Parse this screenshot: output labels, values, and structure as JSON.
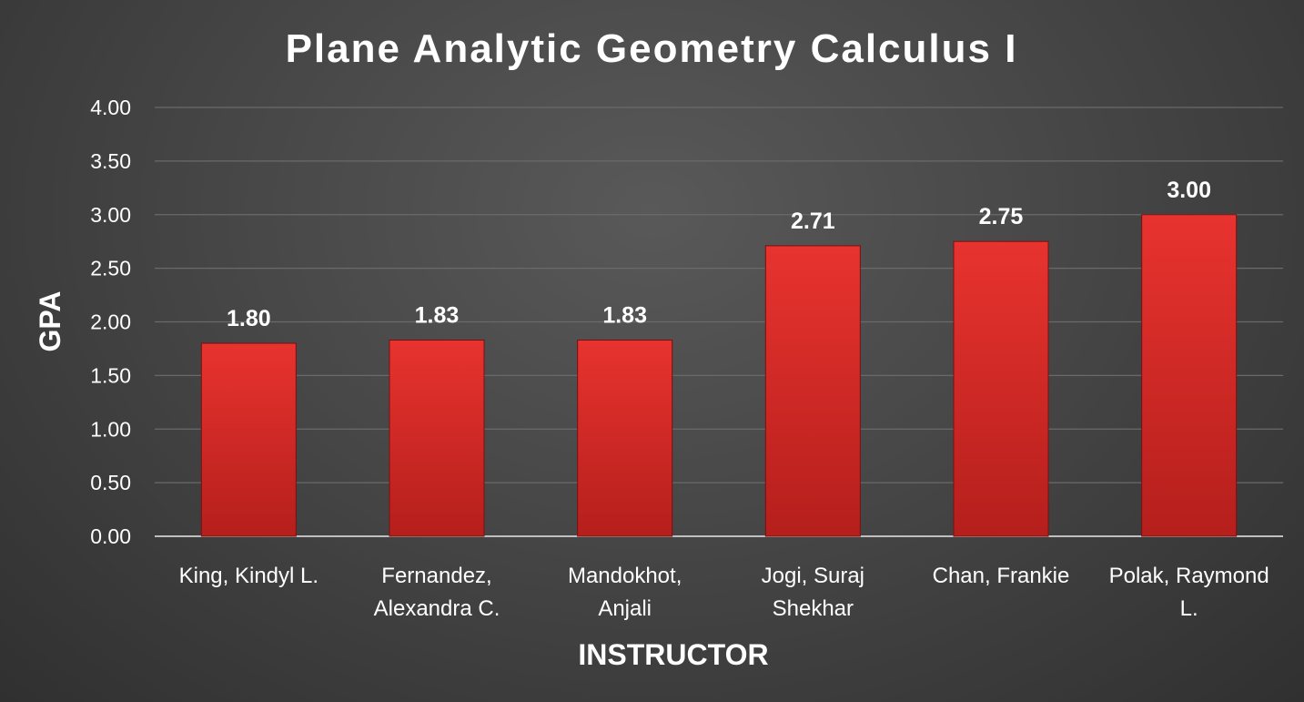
{
  "chart_data": {
    "type": "bar",
    "title": "Plane Analytic Geometry Calculus I",
    "xlabel": "INSTRUCTOR",
    "ylabel": "GPA",
    "categories": [
      [
        "King, Kindyl L."
      ],
      [
        "Fernandez,",
        "Alexandra C."
      ],
      [
        "Mandokhot,",
        "Anjali"
      ],
      [
        "Jogi, Suraj",
        "Shekhar"
      ],
      [
        "Chan, Frankie"
      ],
      [
        "Polak, Raymond",
        "L."
      ]
    ],
    "values": [
      1.8,
      1.83,
      1.83,
      2.71,
      2.75,
      3.0
    ],
    "data_labels": [
      "1.80",
      "1.83",
      "1.83",
      "2.71",
      "2.75",
      "3.00"
    ],
    "y_ticks": [
      "0.00",
      "0.50",
      "1.00",
      "1.50",
      "2.00",
      "2.50",
      "3.00",
      "3.50",
      "4.00"
    ],
    "ylim": [
      0,
      4
    ],
    "grid": true,
    "legend": "none",
    "bar_color": "#e0302c"
  }
}
